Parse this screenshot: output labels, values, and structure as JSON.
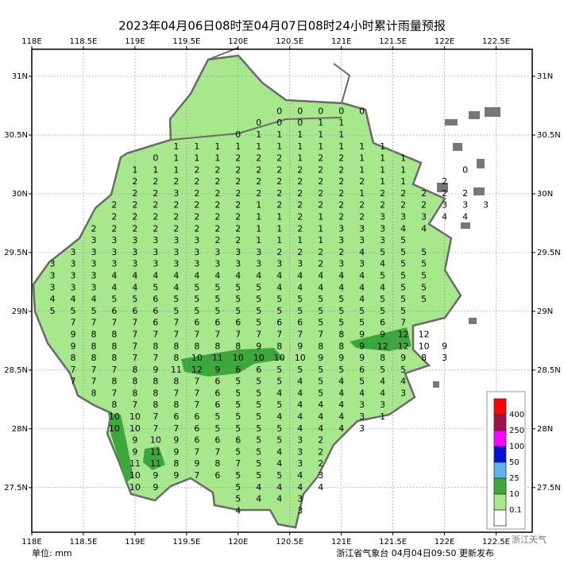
{
  "map": {
    "title": "2023年04月06日08时至04月07日08时24小时累计雨量预报",
    "unit": "单位: mm",
    "footer": "浙江省气象台 04月04日09:50 更新发布",
    "watermark": "浙江天气",
    "lon_range": [
      118,
      122.85
    ],
    "lat_range": [
      27.12,
      31.23
    ],
    "lon_ticks": [
      {
        "value": 118,
        "label": "118E"
      },
      {
        "value": 118.5,
        "label": "118.5E"
      },
      {
        "value": 119,
        "label": "119E"
      },
      {
        "value": 119.5,
        "label": "119.5E"
      },
      {
        "value": 120,
        "label": "120E"
      },
      {
        "value": 120.5,
        "label": "120.5E"
      },
      {
        "value": 121,
        "label": "121E"
      },
      {
        "value": 121.5,
        "label": "121.5E"
      },
      {
        "value": 122,
        "label": "122E"
      },
      {
        "value": 122.5,
        "label": "122.5E"
      }
    ],
    "lat_ticks": [
      {
        "value": 31,
        "label": "31N"
      },
      {
        "value": 30.5,
        "label": "30.5N"
      },
      {
        "value": 30,
        "label": "30N"
      },
      {
        "value": 29.5,
        "label": "29.5N"
      },
      {
        "value": 29,
        "label": "29N"
      },
      {
        "value": 28.5,
        "label": "28.5N"
      },
      {
        "value": 28,
        "label": "28N"
      },
      {
        "value": 27.5,
        "label": "27.5N"
      }
    ],
    "grid_lons": [
      118.2,
      118.4,
      118.6,
      118.8,
      119.0,
      119.2,
      119.4,
      119.6,
      119.8,
      120.0,
      120.2,
      120.4,
      120.6,
      120.8,
      121.0,
      121.2,
      121.4,
      121.6,
      121.8,
      122.0,
      122.2,
      122.4
    ],
    "grid_lats": [
      30.7,
      30.6,
      30.5,
      30.4,
      30.3,
      30.2,
      30.1,
      30.0,
      29.9,
      29.8,
      29.7,
      29.6,
      29.5,
      29.4,
      29.3,
      29.2,
      29.1,
      29.0,
      28.9,
      28.8,
      28.7,
      28.6,
      28.5,
      28.4,
      28.3,
      28.2,
      28.1,
      28.0,
      27.9,
      27.8,
      27.7,
      27.6,
      27.5,
      27.4,
      27.3
    ],
    "values": [
      [
        null,
        null,
        null,
        null,
        null,
        null,
        null,
        null,
        null,
        null,
        null,
        0,
        0,
        0,
        0,
        0,
        null,
        null,
        null,
        null,
        null,
        null
      ],
      [
        null,
        null,
        null,
        null,
        null,
        null,
        null,
        null,
        null,
        null,
        0,
        0,
        0,
        1,
        1,
        null,
        null,
        null,
        null,
        null,
        null,
        null
      ],
      [
        null,
        null,
        null,
        null,
        null,
        null,
        null,
        null,
        null,
        0,
        1,
        1,
        1,
        1,
        1,
        null,
        null,
        null,
        null,
        null,
        null,
        null
      ],
      [
        null,
        null,
        null,
        null,
        null,
        null,
        1,
        1,
        1,
        1,
        1,
        1,
        1,
        1,
        1,
        1,
        1,
        null,
        null,
        null,
        null,
        null
      ],
      [
        null,
        null,
        null,
        null,
        null,
        0,
        1,
        1,
        1,
        2,
        2,
        2,
        1,
        2,
        2,
        1,
        1,
        1,
        null,
        null,
        null,
        null
      ],
      [
        null,
        null,
        null,
        null,
        1,
        1,
        1,
        2,
        2,
        2,
        2,
        2,
        2,
        2,
        2,
        1,
        1,
        1,
        null,
        null,
        0,
        null
      ],
      [
        null,
        null,
        null,
        null,
        2,
        2,
        2,
        2,
        2,
        2,
        2,
        2,
        2,
        2,
        2,
        2,
        1,
        1,
        null,
        2,
        null,
        null
      ],
      [
        null,
        null,
        null,
        null,
        2,
        2,
        3,
        2,
        2,
        2,
        2,
        2,
        2,
        2,
        2,
        1,
        2,
        2,
        2,
        2,
        2,
        null
      ],
      [
        null,
        null,
        null,
        2,
        2,
        2,
        2,
        2,
        2,
        2,
        1,
        2,
        2,
        2,
        2,
        2,
        2,
        2,
        2,
        3,
        3,
        3
      ],
      [
        null,
        null,
        null,
        2,
        2,
        2,
        2,
        2,
        2,
        2,
        1,
        1,
        2,
        1,
        2,
        2,
        3,
        3,
        3,
        4,
        4,
        null
      ],
      [
        null,
        null,
        2,
        2,
        2,
        2,
        2,
        2,
        2,
        2,
        1,
        1,
        2,
        1,
        3,
        3,
        3,
        4,
        4,
        null,
        null,
        null
      ],
      [
        null,
        null,
        3,
        3,
        3,
        3,
        3,
        3,
        2,
        2,
        1,
        1,
        1,
        1,
        3,
        3,
        3,
        5,
        null,
        null,
        null,
        null
      ],
      [
        null,
        3,
        3,
        3,
        3,
        3,
        3,
        3,
        3,
        3,
        3,
        2,
        2,
        2,
        2,
        4,
        5,
        5,
        5,
        null,
        null,
        null
      ],
      [
        3,
        3,
        3,
        3,
        3,
        3,
        3,
        3,
        3,
        3,
        3,
        3,
        3,
        2,
        3,
        3,
        4,
        5,
        5,
        null,
        null,
        null
      ],
      [
        3,
        3,
        3,
        4,
        4,
        4,
        4,
        4,
        4,
        4,
        4,
        4,
        4,
        4,
        4,
        4,
        5,
        5,
        5,
        null,
        null,
        null
      ],
      [
        3,
        3,
        3,
        4,
        4,
        5,
        4,
        5,
        5,
        5,
        5,
        4,
        4,
        4,
        4,
        4,
        4,
        5,
        5,
        null,
        null,
        null
      ],
      [
        4,
        4,
        4,
        5,
        5,
        6,
        5,
        5,
        5,
        5,
        5,
        5,
        5,
        5,
        5,
        4,
        5,
        5,
        5,
        null,
        null,
        null
      ],
      [
        5,
        5,
        5,
        6,
        6,
        6,
        5,
        5,
        5,
        5,
        5,
        5,
        5,
        5,
        5,
        5,
        5,
        5,
        null,
        null,
        null,
        null
      ],
      [
        null,
        7,
        7,
        7,
        7,
        6,
        7,
        6,
        6,
        6,
        5,
        6,
        6,
        5,
        5,
        5,
        6,
        7,
        null,
        null,
        null,
        null
      ],
      [
        null,
        9,
        8,
        8,
        7,
        7,
        7,
        7,
        7,
        7,
        7,
        7,
        7,
        7,
        8,
        9,
        9,
        12,
        12,
        null,
        null,
        null
      ],
      [
        null,
        9,
        8,
        8,
        7,
        8,
        8,
        8,
        8,
        8,
        9,
        8,
        9,
        8,
        8,
        9,
        12,
        12,
        10,
        9,
        null,
        null
      ],
      [
        null,
        8,
        8,
        8,
        7,
        7,
        8,
        10,
        11,
        10,
        10,
        10,
        10,
        9,
        9,
        9,
        8,
        9,
        8,
        3,
        null,
        null
      ],
      [
        null,
        7,
        7,
        7,
        8,
        9,
        11,
        12,
        9,
        6,
        6,
        5,
        5,
        5,
        5,
        6,
        5,
        5,
        null,
        null,
        null,
        null
      ],
      [
        null,
        7,
        7,
        8,
        8,
        8,
        8,
        7,
        6,
        5,
        5,
        5,
        4,
        5,
        4,
        5,
        4,
        4,
        null,
        null,
        null,
        null
      ],
      [
        null,
        null,
        8,
        7,
        8,
        8,
        7,
        7,
        6,
        5,
        5,
        4,
        4,
        5,
        4,
        4,
        4,
        3,
        null,
        null,
        null,
        null
      ],
      [
        null,
        null,
        null,
        8,
        7,
        8,
        8,
        7,
        6,
        5,
        5,
        5,
        4,
        4,
        4,
        3,
        3,
        null,
        null,
        null,
        null,
        null
      ],
      [
        null,
        null,
        null,
        10,
        10,
        7,
        6,
        6,
        5,
        5,
        5,
        4,
        4,
        4,
        4,
        3,
        1,
        null,
        null,
        null,
        null,
        null
      ],
      [
        null,
        null,
        null,
        10,
        10,
        7,
        7,
        6,
        5,
        5,
        5,
        5,
        4,
        4,
        4,
        3,
        null,
        null,
        null,
        null,
        null,
        null
      ],
      [
        null,
        null,
        null,
        null,
        9,
        10,
        9,
        6,
        6,
        6,
        5,
        5,
        3,
        2,
        null,
        null,
        null,
        null,
        null,
        null,
        null,
        null
      ],
      [
        null,
        null,
        null,
        null,
        9,
        11,
        9,
        7,
        7,
        5,
        5,
        4,
        3,
        2,
        null,
        null,
        null,
        null,
        null,
        null,
        null,
        null
      ],
      [
        null,
        null,
        null,
        null,
        11,
        11,
        8,
        9,
        8,
        7,
        5,
        4,
        3,
        2,
        null,
        null,
        null,
        null,
        null,
        null,
        null,
        null
      ],
      [
        null,
        null,
        null,
        null,
        10,
        9,
        9,
        7,
        6,
        5,
        5,
        5,
        4,
        3,
        null,
        null,
        null,
        null,
        null,
        null,
        null,
        null
      ],
      [
        null,
        null,
        null,
        null,
        10,
        9,
        null,
        null,
        null,
        5,
        4,
        4,
        4,
        4,
        null,
        null,
        null,
        null,
        null,
        null,
        null,
        null
      ],
      [
        null,
        null,
        null,
        null,
        null,
        null,
        null,
        null,
        null,
        5,
        4,
        4,
        3,
        null,
        null,
        null,
        null,
        null,
        null,
        null,
        null,
        null
      ],
      [
        null,
        null,
        null,
        null,
        null,
        null,
        null,
        null,
        null,
        4,
        null,
        null,
        3,
        null,
        null,
        null,
        null,
        null,
        null,
        null,
        null,
        null
      ]
    ],
    "legend": {
      "levels": [
        400,
        250,
        100,
        50,
        25,
        10,
        0.1
      ],
      "colors": [
        "#ff0000",
        "#a0104a",
        "#ff00ff",
        "#0010d0",
        "#5ab4f0",
        "#3ca83c",
        "#a8e88c",
        "#ffffff"
      ]
    }
  }
}
